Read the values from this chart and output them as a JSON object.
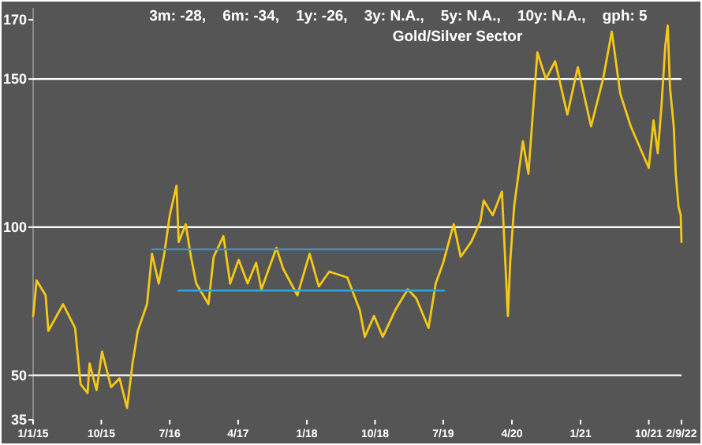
{
  "chart_data": {
    "type": "line",
    "title": "3m: -28,    6m: -34,    1y: -26,    3y: N.A.,    5y: N.A.,    10y: N.A.,    gph: 5",
    "subtitle": "Gold/Silver Sector",
    "xlim": [
      "2015-01-01",
      "2022-02-09"
    ],
    "xticks": [
      {
        "value": "2015-01-01",
        "label": "1/1/15"
      },
      {
        "value": "2015-10-01",
        "label": "10/15"
      },
      {
        "value": "2016-07-01",
        "label": "7/16"
      },
      {
        "value": "2017-04-01",
        "label": "4/17"
      },
      {
        "value": "2018-01-01",
        "label": "1/18"
      },
      {
        "value": "2018-10-01",
        "label": "10/18"
      },
      {
        "value": "2019-07-01",
        "label": "7/19"
      },
      {
        "value": "2020-04-01",
        "label": "4/20"
      },
      {
        "value": "2021-01-01",
        "label": "1/21"
      },
      {
        "value": "2021-10-01",
        "label": "10/21"
      },
      {
        "value": "2022-02-09",
        "label": "2/9/22"
      }
    ],
    "ylim": [
      35,
      174
    ],
    "yticks": [
      35,
      50,
      100,
      150,
      170
    ],
    "grid": false,
    "ref_lines": [
      {
        "axis": "y",
        "value": 50,
        "color": "#ffffff"
      },
      {
        "axis": "y",
        "value": 100,
        "color": "#ffffff"
      },
      {
        "axis": "y",
        "value": 150,
        "color": "#ffffff"
      }
    ],
    "series": [
      {
        "color": "#f5c816",
        "x": [
          "2015-01-01",
          "2015-01-15",
          "2015-02-20",
          "2015-03-03",
          "2015-05-01",
          "2015-06-18",
          "2015-07-10",
          "2015-08-07",
          "2015-08-15",
          "2015-09-12",
          "2015-10-04",
          "2015-11-09",
          "2015-12-13",
          "2016-01-12",
          "2016-02-03",
          "2016-02-24",
          "2016-04-01",
          "2016-04-21",
          "2016-05-18",
          "2016-06-09",
          "2016-07-01",
          "2016-07-28",
          "2016-08-06",
          "2016-09-03",
          "2016-09-24",
          "2016-10-15",
          "2016-12-03",
          "2016-12-24",
          "2017-02-01",
          "2017-02-28",
          "2017-04-03",
          "2017-05-09",
          "2017-06-12",
          "2017-07-03",
          "2017-09-01",
          "2017-09-28",
          "2017-11-24",
          "2018-01-12",
          "2018-02-18",
          "2018-04-01",
          "2018-06-12",
          "2018-08-01",
          "2018-08-21",
          "2018-09-27",
          "2018-11-01",
          "2018-12-21",
          "2019-02-09",
          "2019-03-15",
          "2019-05-03",
          "2019-06-01",
          "2019-07-01",
          "2019-08-12",
          "2019-09-09",
          "2019-10-21",
          "2019-11-27",
          "2019-12-10",
          "2020-01-15",
          "2020-02-21",
          "2020-03-16",
          "2020-03-25",
          "2020-04-10",
          "2020-05-15",
          "2020-06-06",
          "2020-07-12",
          "2020-08-15",
          "2020-09-21",
          "2020-11-09",
          "2020-12-21",
          "2021-02-12",
          "2021-04-01",
          "2021-05-06",
          "2021-06-09",
          "2021-07-21",
          "2021-10-01",
          "2021-10-20",
          "2021-11-06",
          "2021-11-21",
          "2021-12-06",
          "2021-12-16",
          "2021-12-25",
          "2022-01-09",
          "2022-01-17",
          "2022-01-28",
          "2022-02-06",
          "2022-02-09"
        ],
        "values": [
          70,
          82,
          77,
          65,
          74,
          66,
          47,
          44,
          54,
          45,
          58,
          46,
          49,
          39,
          54,
          65,
          74,
          91,
          81,
          91,
          104,
          114,
          95,
          101,
          90,
          81,
          74,
          90,
          97,
          81,
          89,
          81,
          88,
          79,
          93,
          86,
          77,
          91,
          80,
          85,
          83,
          72,
          63,
          70,
          63,
          72,
          79,
          76,
          66,
          81,
          88,
          101,
          90,
          95,
          102,
          109,
          104,
          112,
          70,
          88,
          107,
          129,
          118,
          159,
          150,
          156,
          138,
          154,
          134,
          150,
          166,
          145,
          134,
          120,
          136,
          125,
          141,
          161,
          168,
          147,
          134,
          118,
          107,
          104,
          95
        ]
      },
      {
        "type": "line",
        "color": "#4a8cc0",
        "x": [
          "2016-04-21",
          "2019-07-04"
        ],
        "values": [
          92.5,
          92.5
        ]
      },
      {
        "type": "line",
        "color": "#29a8e0",
        "x": [
          "2016-08-06",
          "2019-07-04"
        ],
        "values": [
          78.6,
          78.6
        ]
      }
    ]
  }
}
